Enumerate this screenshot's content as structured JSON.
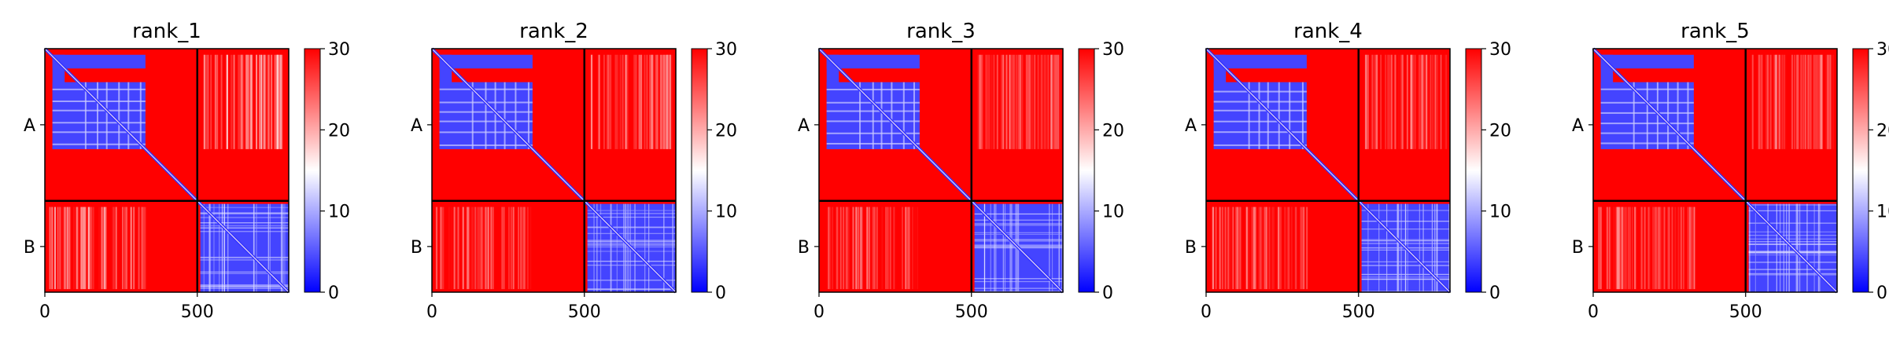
{
  "colormap": {
    "low": "#0000ff",
    "mid": "#ffffff",
    "high": "#ff0000"
  },
  "chart_data": {
    "type": "heatmap",
    "colorbar": {
      "min": 0,
      "max": 30,
      "ticks": [
        "0",
        "10",
        "20",
        "30"
      ]
    },
    "chains": [
      {
        "label": "A",
        "start": 0,
        "end": 500
      },
      {
        "label": "B",
        "start": 500,
        "end": 800
      }
    ],
    "x_ticks": [
      "0",
      "500"
    ],
    "x_tick_values": [
      0,
      500
    ],
    "panels": [
      {
        "title": "rank_1"
      },
      {
        "title": "rank_2"
      },
      {
        "title": "rank_3"
      },
      {
        "title": "rank_4"
      },
      {
        "title": "rank_5"
      }
    ]
  }
}
